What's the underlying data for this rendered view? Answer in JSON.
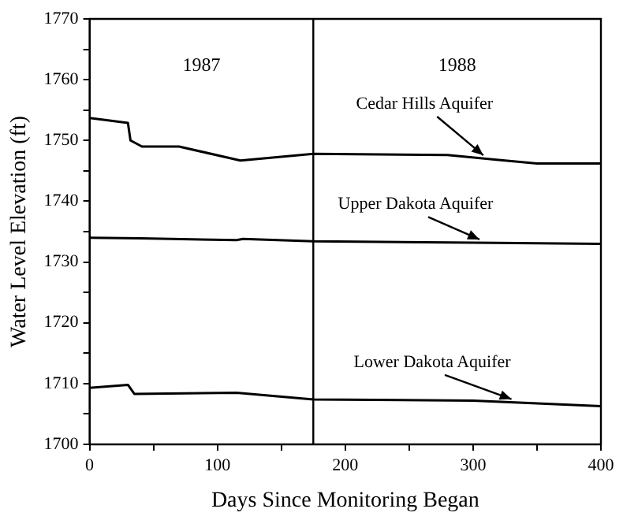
{
  "chart_data": {
    "type": "line",
    "xlabel": "Days Since Monitoring Began",
    "ylabel": "Water Level Elevation (ft)",
    "xlim": [
      0,
      400
    ],
    "xticks": [
      0,
      {
        "value": 50,
        "label": null
      },
      100,
      {
        "value": 150,
        "label": null
      },
      200,
      {
        "value": 250,
        "label": null
      },
      300,
      {
        "value": 350,
        "label": null
      },
      400
    ],
    "ylim": [
      1700,
      1770
    ],
    "yticks": [
      1700,
      {
        "value": 1705,
        "label": null
      },
      1710,
      {
        "value": 1715,
        "label": null
      },
      1720,
      {
        "value": 1725,
        "label": null
      },
      1730,
      {
        "value": 1735,
        "label": null
      },
      1740,
      {
        "value": 1745,
        "label": null
      },
      1750,
      {
        "value": 1755,
        "label": null
      },
      1760,
      {
        "value": 1765,
        "label": null
      },
      1770
    ],
    "grid": false,
    "legend": false,
    "marker": "none",
    "line_style": "solid",
    "series": [
      {
        "name": "Cedar Hills Aquifer",
        "color": "#000000",
        "x": [
          0,
          30,
          32,
          41,
          70,
          118,
          175,
          280,
          320,
          350,
          400
        ],
        "values": [
          1753.7,
          1752.9,
          1750,
          1749,
          1749,
          1746.7,
          1747.8,
          1747.6,
          1746.8,
          1746.2,
          1746.2
        ]
      },
      {
        "name": "Upper Dakota Aquifer",
        "color": "#000000",
        "x": [
          0,
          40,
          115,
          120,
          175,
          300,
          400
        ],
        "values": [
          1734,
          1733.9,
          1733.6,
          1733.8,
          1733.4,
          1733.2,
          1733
        ]
      },
      {
        "name": "Lower Dakota Aquifer",
        "color": "#000000",
        "x": [
          0,
          30,
          35,
          115,
          175,
          300,
          400
        ],
        "values": [
          1709.3,
          1709.8,
          1708.3,
          1708.5,
          1707.4,
          1707.2,
          1706.3
        ]
      }
    ],
    "ref_lines": [
      {
        "axis": "x",
        "value": 175,
        "color": "#000000"
      }
    ],
    "annotations": [
      "1987",
      "1988"
    ]
  }
}
